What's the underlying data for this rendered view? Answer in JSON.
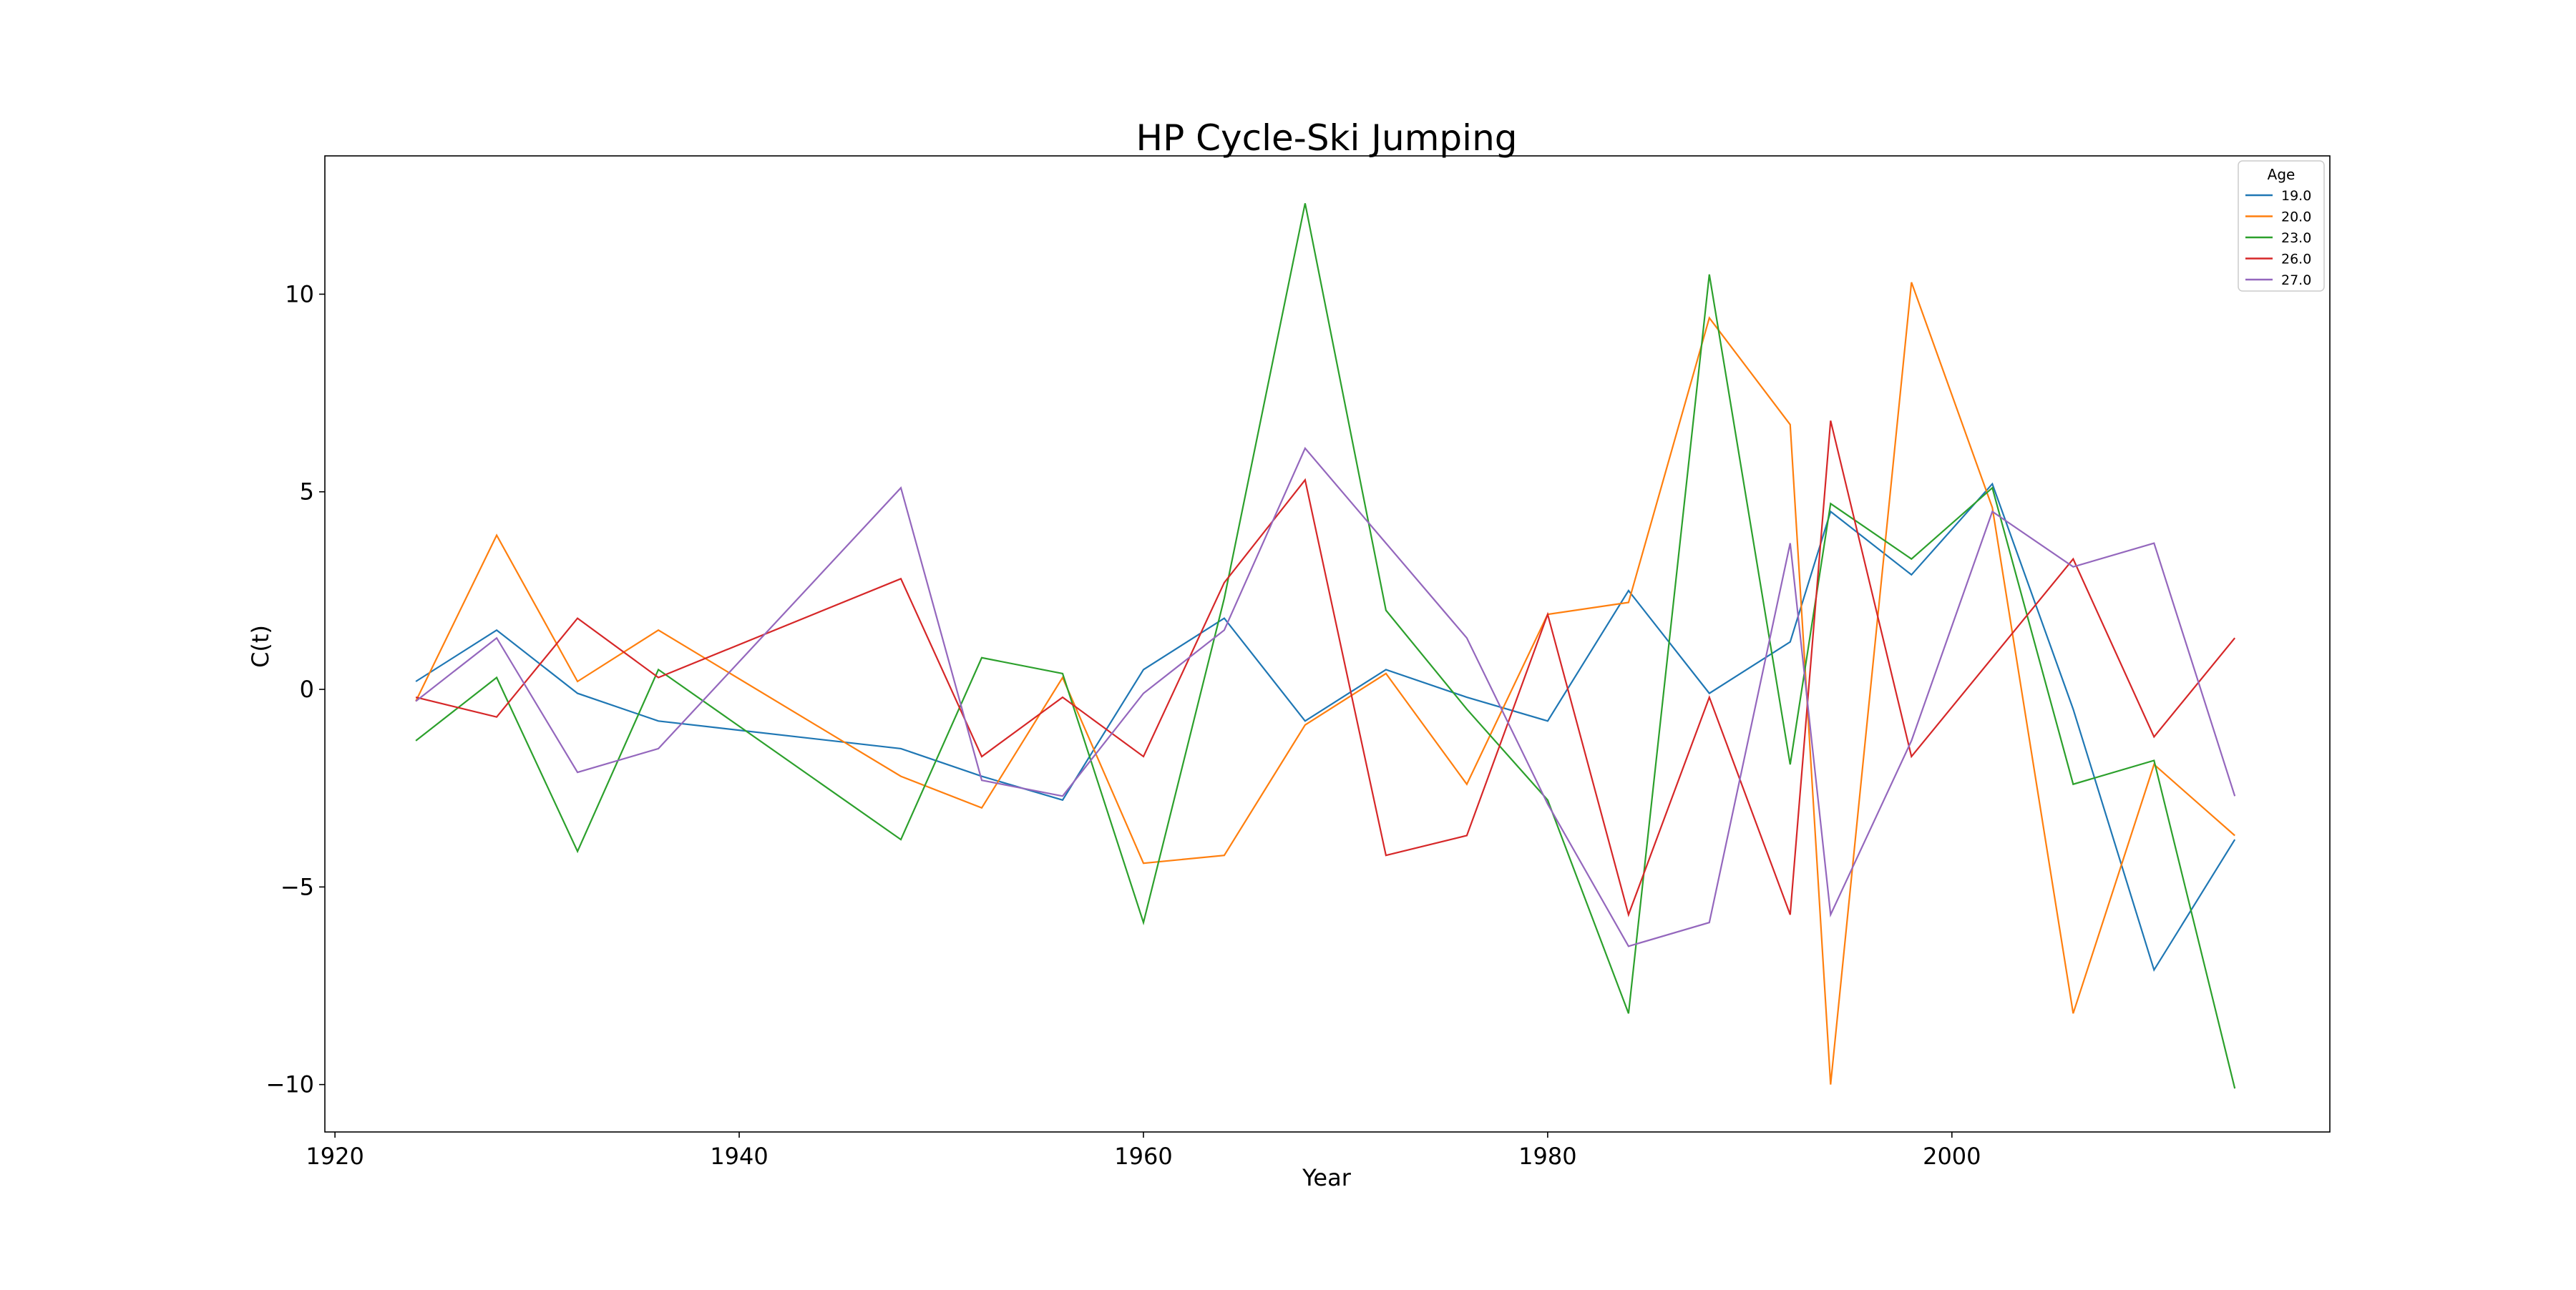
{
  "chart_data": {
    "type": "line",
    "title": "HP Cycle-Ski Jumping",
    "xlabel": "Year",
    "ylabel": "C(t)",
    "xlim": [
      1919.5,
      2018.7
    ],
    "ylim": [
      -11.2,
      13.5
    ],
    "xticks": [
      1920,
      1940,
      1960,
      1980,
      2000
    ],
    "yticks": [
      -10,
      -5,
      0,
      5,
      10
    ],
    "grid": false,
    "legend": {
      "title": "Age",
      "position": "top-right"
    },
    "series": [
      {
        "name": "19.0",
        "color": "#1f77b4",
        "x": [
          1924,
          1928,
          1932,
          1936,
          1948,
          1952,
          1956,
          1960,
          1964,
          1968,
          1972,
          1976,
          1980,
          1984,
          1988,
          1992,
          1994,
          1998,
          2002,
          2006,
          2010,
          2014
        ],
        "y": [
          0.2,
          1.5,
          -0.1,
          -0.8,
          -1.5,
          -2.2,
          -2.8,
          0.5,
          1.8,
          -0.8,
          0.5,
          -0.2,
          -0.8,
          2.5,
          -0.1,
          1.2,
          4.5,
          2.9,
          5.2,
          -0.5,
          -7.1,
          -3.8
        ]
      },
      {
        "name": "20.0",
        "color": "#ff7f0e",
        "x": [
          1924,
          1928,
          1932,
          1936,
          1948,
          1952,
          1956,
          1960,
          1964,
          1968,
          1972,
          1976,
          1980,
          1984,
          1988,
          1992,
          1994,
          1998,
          2002,
          2006,
          2010,
          2014
        ],
        "y": [
          -0.3,
          3.9,
          0.2,
          1.5,
          -2.2,
          -3.0,
          0.3,
          -4.4,
          -4.2,
          -0.9,
          0.4,
          -2.4,
          1.9,
          2.2,
          9.4,
          6.7,
          -10.0,
          10.3,
          4.6,
          -8.2,
          -1.9,
          -3.7
        ]
      },
      {
        "name": "23.0",
        "color": "#2ca02c",
        "x": [
          1924,
          1928,
          1932,
          1936,
          1948,
          1952,
          1956,
          1960,
          1964,
          1968,
          1972,
          1976,
          1980,
          1984,
          1988,
          1992,
          1994,
          1998,
          2002,
          2006,
          2010,
          2014
        ],
        "y": [
          -1.3,
          0.3,
          -4.1,
          0.5,
          -3.8,
          0.8,
          0.4,
          -5.9,
          2.3,
          12.3,
          2.0,
          -0.5,
          -2.8,
          -8.2,
          10.5,
          -1.9,
          4.7,
          3.3,
          5.1,
          -2.4,
          -1.8,
          -10.1
        ]
      },
      {
        "name": "26.0",
        "color": "#d62728",
        "x": [
          1924,
          1928,
          1932,
          1936,
          1948,
          1952,
          1956,
          1960,
          1964,
          1968,
          1972,
          1976,
          1980,
          1984,
          1988,
          1992,
          1994,
          1998,
          2006,
          2010,
          2014
        ],
        "y": [
          -0.2,
          -0.7,
          1.8,
          0.3,
          2.8,
          -1.7,
          -0.2,
          -1.7,
          2.7,
          5.3,
          -4.2,
          -3.7,
          1.9,
          -5.7,
          -0.2,
          -5.7,
          6.8,
          -1.7,
          3.3,
          -1.2,
          1.3
        ]
      },
      {
        "name": "27.0",
        "color": "#9467bd",
        "x": [
          1924,
          1928,
          1932,
          1936,
          1948,
          1952,
          1956,
          1960,
          1964,
          1968,
          1972,
          1976,
          1980,
          1984,
          1988,
          1992,
          1994,
          1998,
          2002,
          2006,
          2010,
          2014
        ],
        "y": [
          -0.3,
          1.3,
          -2.1,
          -1.5,
          5.1,
          -2.3,
          -2.7,
          -0.1,
          1.5,
          6.1,
          3.7,
          1.3,
          -2.9,
          -6.5,
          -5.9,
          3.7,
          -5.7,
          -1.3,
          4.5,
          3.1,
          3.7,
          -2.7
        ]
      }
    ]
  }
}
